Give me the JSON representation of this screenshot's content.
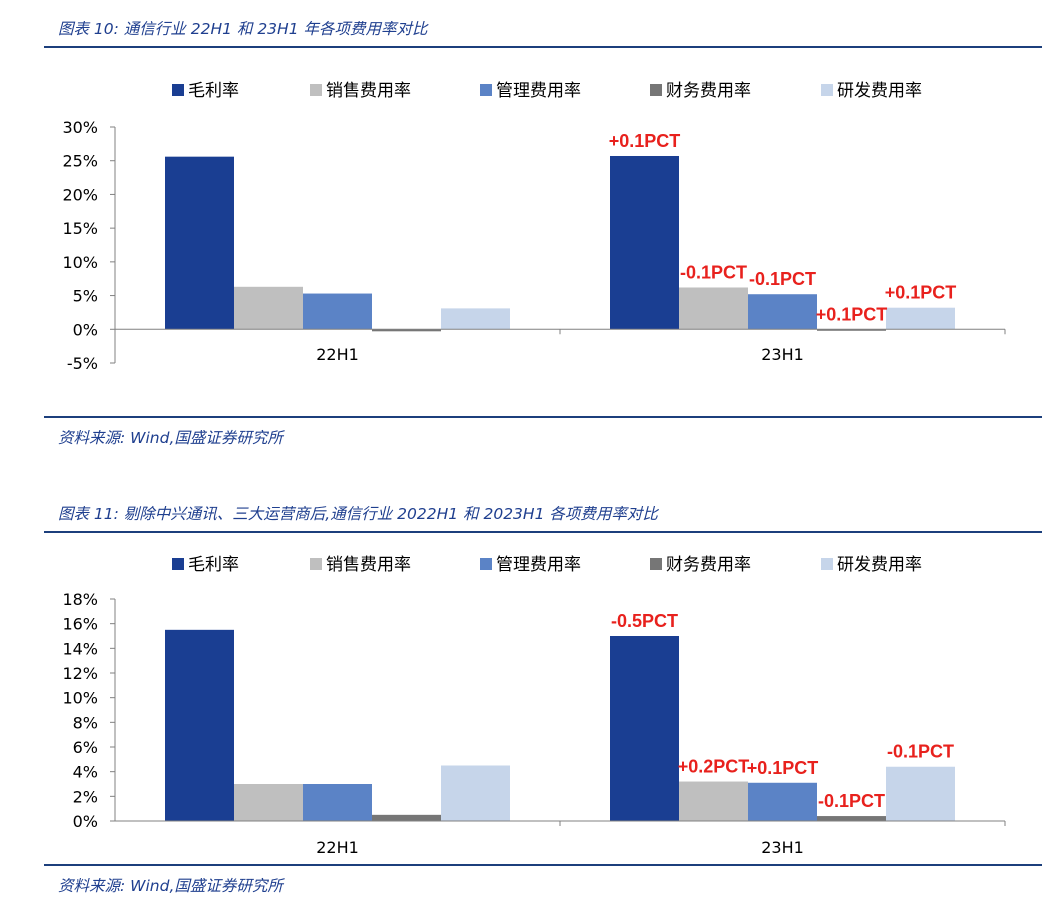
{
  "colors": {
    "毛利率": "#1a3e92",
    "销售费用率": "#bfbfbf",
    "管理费用率": "#5b83c6",
    "财务费用率": "#767676",
    "研发费用率": "#c6d5ea",
    "annotation": "#e8211d",
    "rule": "#1c3f7c",
    "caption": "#1f3f8f"
  },
  "figure10": {
    "title": "图表 10:  通信行业 22H1 和 23H1 年各项费用率对比",
    "source": "资料来源:  Wind,国盛证券研究所"
  },
  "figure11": {
    "title": "图表 11:  剔除中兴通讯、三大运营商后,通信行业 2022H1 和 2023H1 各项费用率对比",
    "source": "资料来源:  Wind,国盛证券研究所"
  },
  "chart_data": [
    {
      "type": "bar",
      "categories": [
        "22H1",
        "23H1"
      ],
      "series": [
        {
          "name": "毛利率",
          "values": [
            25.6,
            25.7
          ]
        },
        {
          "name": "销售费用率",
          "values": [
            6.3,
            6.2
          ]
        },
        {
          "name": "管理费用率",
          "values": [
            5.3,
            5.2
          ]
        },
        {
          "name": "财务费用率",
          "values": [
            -0.3,
            -0.2
          ]
        },
        {
          "name": "研发费用率",
          "values": [
            3.1,
            3.2
          ]
        }
      ],
      "annotations": [
        {
          "category": "23H1",
          "series": "毛利率",
          "text": "+0.1PCT"
        },
        {
          "category": "23H1",
          "series": "销售费用率",
          "text": "-0.1PCT"
        },
        {
          "category": "23H1",
          "series": "管理费用率",
          "text": "-0.1PCT"
        },
        {
          "category": "23H1",
          "series": "财务费用率",
          "text": "+0.1PCT"
        },
        {
          "category": "23H1",
          "series": "研发费用率",
          "text": "+0.1PCT"
        }
      ],
      "ylim": [
        -5,
        30
      ],
      "yticks": [
        -5,
        0,
        5,
        10,
        15,
        20,
        25,
        30
      ],
      "ytick_labels": [
        "-5%",
        "0%",
        "5%",
        "10%",
        "15%",
        "20%",
        "25%",
        "30%"
      ],
      "legend_position": "top",
      "grid": false
    },
    {
      "type": "bar",
      "categories": [
        "22H1",
        "23H1"
      ],
      "series": [
        {
          "name": "毛利率",
          "values": [
            15.5,
            15.0
          ]
        },
        {
          "name": "销售费用率",
          "values": [
            3.0,
            3.2
          ]
        },
        {
          "name": "管理费用率",
          "values": [
            3.0,
            3.1
          ]
        },
        {
          "name": "财务费用率",
          "values": [
            0.5,
            0.4
          ]
        },
        {
          "name": "研发费用率",
          "values": [
            4.5,
            4.4
          ]
        }
      ],
      "annotations": [
        {
          "category": "23H1",
          "series": "毛利率",
          "text": "-0.5PCT"
        },
        {
          "category": "23H1",
          "series": "销售费用率",
          "text": "+0.2PCT"
        },
        {
          "category": "23H1",
          "series": "管理费用率",
          "text": "+0.1PCT"
        },
        {
          "category": "23H1",
          "series": "财务费用率",
          "text": "-0.1PCT"
        },
        {
          "category": "23H1",
          "series": "研发费用率",
          "text": "-0.1PCT"
        }
      ],
      "ylim": [
        0,
        18
      ],
      "yticks": [
        0,
        2,
        4,
        6,
        8,
        10,
        12,
        14,
        16,
        18
      ],
      "ytick_labels": [
        "0%",
        "2%",
        "4%",
        "6%",
        "8%",
        "10%",
        "12%",
        "14%",
        "16%",
        "18%"
      ],
      "legend_position": "top",
      "grid": false
    }
  ]
}
